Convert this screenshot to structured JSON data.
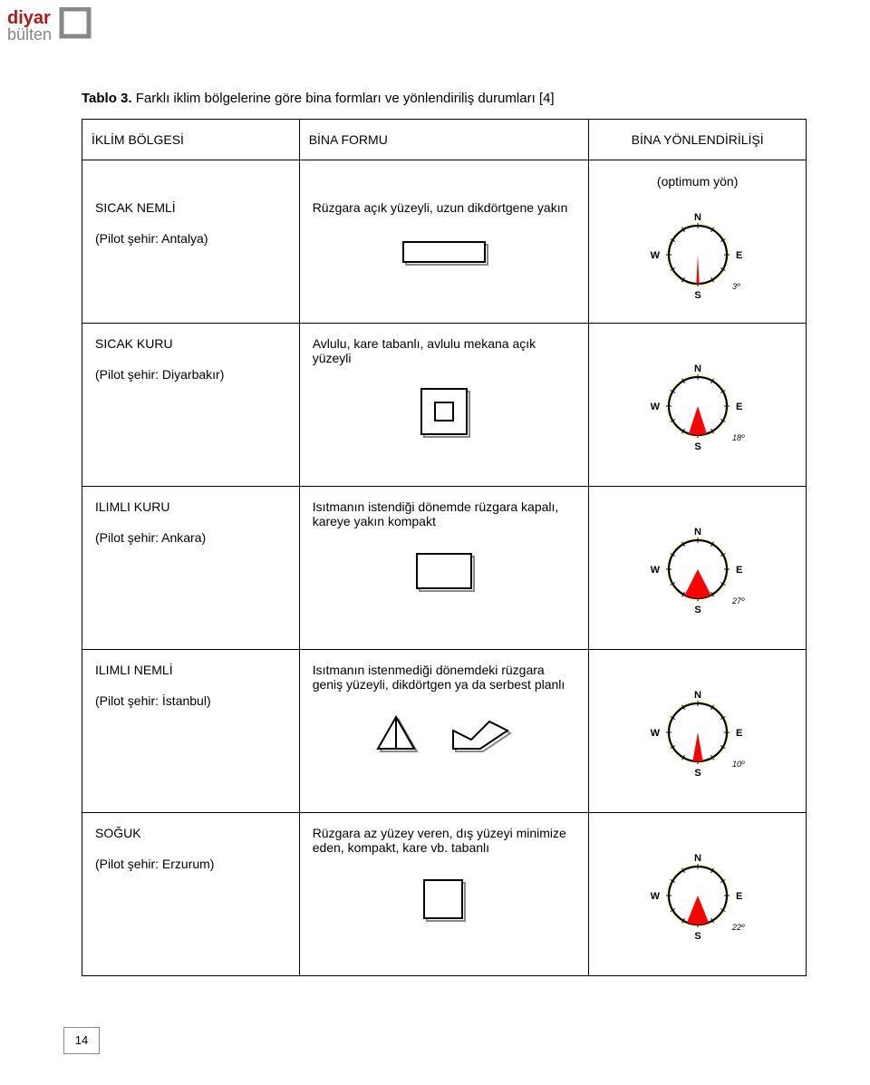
{
  "logo": {
    "line1": "diyar",
    "line2": "bülten"
  },
  "caption_bold": "Tablo 3.",
  "caption_rest": " Farklı iklim bölgelerine göre bina formları ve yönlendiriliş durumları [4]",
  "header": {
    "col1": "İKLİM BÖLGESİ",
    "col2": "BİNA FORMU",
    "col3": "BİNA YÖNLENDİRİLİŞİ",
    "optimum": "(optimum yön)"
  },
  "rows": [
    {
      "climate": "SICAK NEMLİ",
      "pilot": "(Pilot şehir: Antalya)",
      "form_desc": "Rüzgara açık yüzeyli, uzun dikdörtgene yakın",
      "angle": "3º",
      "angle_deg": 3,
      "shapes": "long-rect",
      "compass_bg": "#faf7c3"
    },
    {
      "climate": "SICAK KURU",
      "pilot": "(Pilot şehir: Diyarbakır)",
      "form_desc": "Avlulu, kare tabanlı, avlulu mekana açık yüzeyli",
      "angle": "18º",
      "angle_deg": 18,
      "shapes": "courtyard",
      "compass_bg": "#faf7c3"
    },
    {
      "climate": "ILIMLI KURU",
      "pilot": "(Pilot şehir: Ankara)",
      "form_desc": "Isıtmanın istendiği dönemde rüzgara kapalı, kareye yakın kompakt",
      "angle": "27º",
      "angle_deg": 27,
      "shapes": "near-square",
      "compass_bg": "#faf7c3"
    },
    {
      "climate": "ILIMLI NEMLİ",
      "pilot": "(Pilot şehir: İstanbul)",
      "form_desc": "Isıtmanın istenmediği dönemdeki rüzgara geniş yüzeyli, dikdörtgen ya da serbest planlı",
      "angle": "10º",
      "angle_deg": 10,
      "shapes": "free-plan",
      "compass_bg": "#faf7c3"
    },
    {
      "climate": "SOĞUK",
      "pilot": "(Pilot şehir: Erzurum)",
      "form_desc": "Rüzgara az yüzey veren, dış yüzeyi minimize eden, kompakt, kare vb. tabanlı",
      "angle": "22º",
      "angle_deg": 22,
      "shapes": "square",
      "compass_bg": "#faf7c3"
    }
  ],
  "compass": {
    "N": "N",
    "S": "S",
    "E": "E",
    "W": "W",
    "sector_fill": "#ff0000",
    "ring_stroke": "#000000",
    "tick_stroke": "#000000"
  },
  "shape_stroke": "#000000",
  "shape_shadow": "#888888",
  "page_number": "14"
}
